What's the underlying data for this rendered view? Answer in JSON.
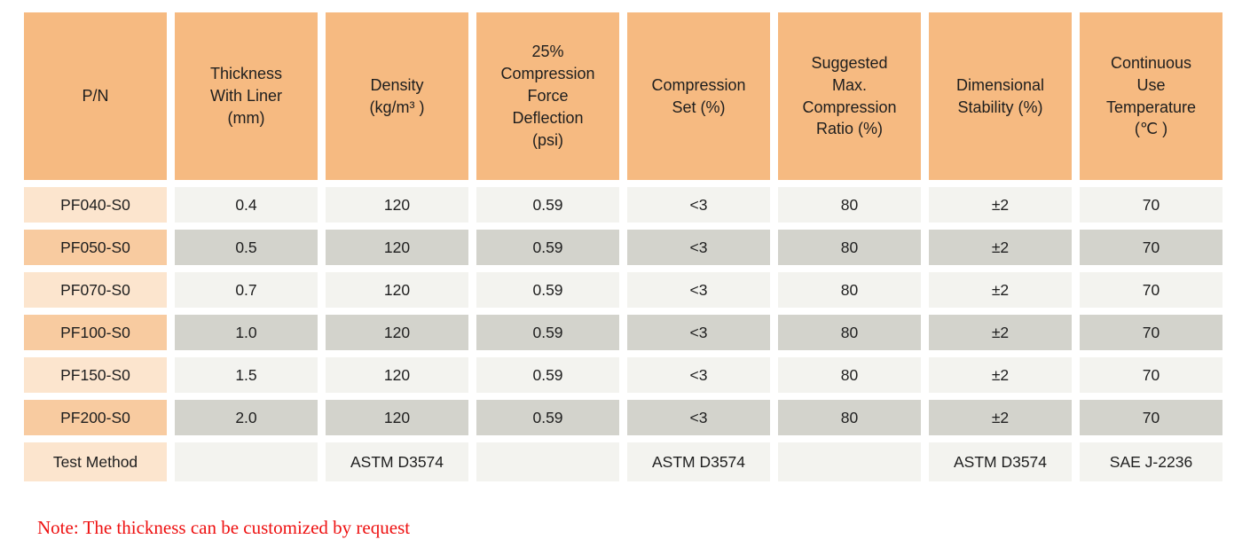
{
  "colors": {
    "header_bg": "#F6BA81",
    "pn_light": "#FCE5CE",
    "pn_dark": "#F8CBA0",
    "cell_light": "#F3F3EF",
    "cell_dark": "#D3D3CC",
    "text": "#1E1E1E",
    "note_red": "#EE1111",
    "page_bg": "#FFFFFF"
  },
  "table": {
    "columns": [
      "P/N",
      "Thickness\nWith Liner\n(mm)",
      "Density\n(kg/m³ )",
      "25%\nCompression\nForce\nDeflection\n(psi)",
      "Compression\nSet (%)",
      "Suggested\nMax.\nCompression\nRatio (%)",
      "Dimensional\nStability (%)",
      "Continuous\nUse\nTemperature\n(℃ )"
    ],
    "rows": [
      {
        "pn": "PF040-S0",
        "shade": "light",
        "test": false,
        "values": [
          "0.4",
          "120",
          "0.59",
          "<3",
          "80",
          "±2",
          "70"
        ]
      },
      {
        "pn": "PF050-S0",
        "shade": "dark",
        "test": false,
        "values": [
          "0.5",
          "120",
          "0.59",
          "<3",
          "80",
          "±2",
          "70"
        ]
      },
      {
        "pn": "PF070-S0",
        "shade": "light",
        "test": false,
        "values": [
          "0.7",
          "120",
          "0.59",
          "<3",
          "80",
          "±2",
          "70"
        ]
      },
      {
        "pn": "PF100-S0",
        "shade": "dark",
        "test": false,
        "values": [
          "1.0",
          "120",
          "0.59",
          "<3",
          "80",
          "±2",
          "70"
        ]
      },
      {
        "pn": "PF150-S0",
        "shade": "light",
        "test": false,
        "values": [
          "1.5",
          "120",
          "0.59",
          "<3",
          "80",
          "±2",
          "70"
        ]
      },
      {
        "pn": "PF200-S0",
        "shade": "dark",
        "test": false,
        "values": [
          "2.0",
          "120",
          "0.59",
          "<3",
          "80",
          "±2",
          "70"
        ]
      },
      {
        "pn": "Test Method",
        "shade": "light",
        "test": true,
        "values": [
          "",
          "ASTM D3574",
          "",
          "ASTM D3574",
          "",
          "ASTM D3574",
          "SAE J-2236"
        ]
      }
    ]
  },
  "note": {
    "text": "Note: The thickness can be customized by request"
  }
}
